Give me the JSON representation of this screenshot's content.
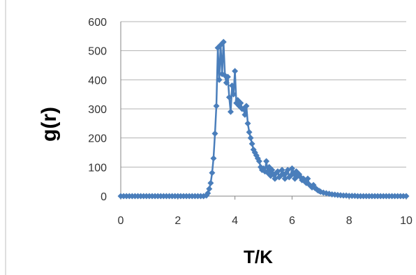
{
  "chart_data": {
    "type": "line",
    "xlabel": "T/K",
    "ylabel": "g(r)",
    "xlim": [
      0,
      10
    ],
    "ylim": [
      0,
      600
    ],
    "x_ticks": [
      "0",
      "2",
      "4",
      "6",
      "8",
      "10"
    ],
    "y_ticks": [
      "0",
      "100",
      "200",
      "300",
      "400",
      "500",
      "600"
    ],
    "grid": "horizontal",
    "marker": "diamond",
    "color": "#4a7ebb",
    "series": [
      {
        "x": [
          0.0,
          0.1,
          0.2,
          0.3,
          0.4,
          0.5,
          0.6,
          0.7,
          0.8,
          0.9,
          1.0,
          1.1,
          1.2,
          1.3,
          1.4,
          1.5,
          1.6,
          1.7,
          1.8,
          1.9,
          2.0,
          2.1,
          2.2,
          2.3,
          2.4,
          2.5,
          2.6,
          2.7,
          2.8,
          2.9,
          3.0,
          3.05,
          3.1,
          3.15,
          3.2,
          3.25,
          3.3,
          3.35,
          3.4,
          3.45,
          3.5,
          3.55,
          3.6,
          3.65,
          3.7,
          3.75,
          3.8,
          3.85,
          3.9,
          3.95,
          4.0,
          4.05,
          4.1,
          4.15,
          4.2,
          4.25,
          4.3,
          4.35,
          4.4,
          4.45,
          4.5,
          4.55,
          4.6,
          4.65,
          4.7,
          4.75,
          4.8,
          4.85,
          4.9,
          4.95,
          5.0,
          5.05,
          5.1,
          5.15,
          5.2,
          5.25,
          5.3,
          5.35,
          5.4,
          5.45,
          5.5,
          5.55,
          5.6,
          5.65,
          5.7,
          5.75,
          5.8,
          5.85,
          5.9,
          5.95,
          6.0,
          6.05,
          6.1,
          6.15,
          6.2,
          6.25,
          6.3,
          6.35,
          6.4,
          6.45,
          6.5,
          6.55,
          6.6,
          6.65,
          6.7,
          6.75,
          6.8,
          6.85,
          6.9,
          6.95,
          7.0,
          7.1,
          7.2,
          7.3,
          7.4,
          7.5,
          7.6,
          7.7,
          7.8,
          7.9,
          8.0,
          8.1,
          8.2,
          8.3,
          8.4,
          8.5,
          8.6,
          8.7,
          8.8,
          8.9,
          9.0,
          9.1,
          9.2,
          9.3,
          9.4,
          9.5,
          9.6,
          9.7,
          9.8,
          9.9,
          10.0
        ],
        "y": [
          0,
          0,
          0,
          0,
          0,
          0,
          0,
          0,
          0,
          0,
          0,
          0,
          0,
          0,
          0,
          0,
          0,
          0,
          0,
          0,
          0,
          0,
          0,
          0,
          0,
          0,
          0,
          0,
          0,
          0,
          2,
          10,
          25,
          45,
          80,
          130,
          215,
          310,
          510,
          400,
          520,
          420,
          530,
          415,
          390,
          410,
          340,
          290,
          380,
          350,
          430,
          320,
          330,
          310,
          320,
          300,
          300,
          280,
          310,
          250,
          220,
          200,
          180,
          160,
          150,
          140,
          130,
          120,
          100,
          90,
          95,
          85,
          120,
          80,
          100,
          70,
          90,
          75,
          60,
          80,
          85,
          65,
          70,
          90,
          75,
          60,
          80,
          90,
          65,
          70,
          95,
          80,
          60,
          85,
          70,
          75,
          65,
          55,
          60,
          50,
          45,
          60,
          40,
          35,
          30,
          38,
          28,
          25,
          20,
          18,
          15,
          12,
          10,
          8,
          6,
          5,
          4,
          3,
          2,
          2,
          1,
          1,
          1,
          0,
          0,
          0,
          0,
          0,
          0,
          0,
          0,
          0,
          0,
          0,
          0,
          0,
          0,
          0,
          0,
          0,
          0
        ]
      }
    ]
  }
}
